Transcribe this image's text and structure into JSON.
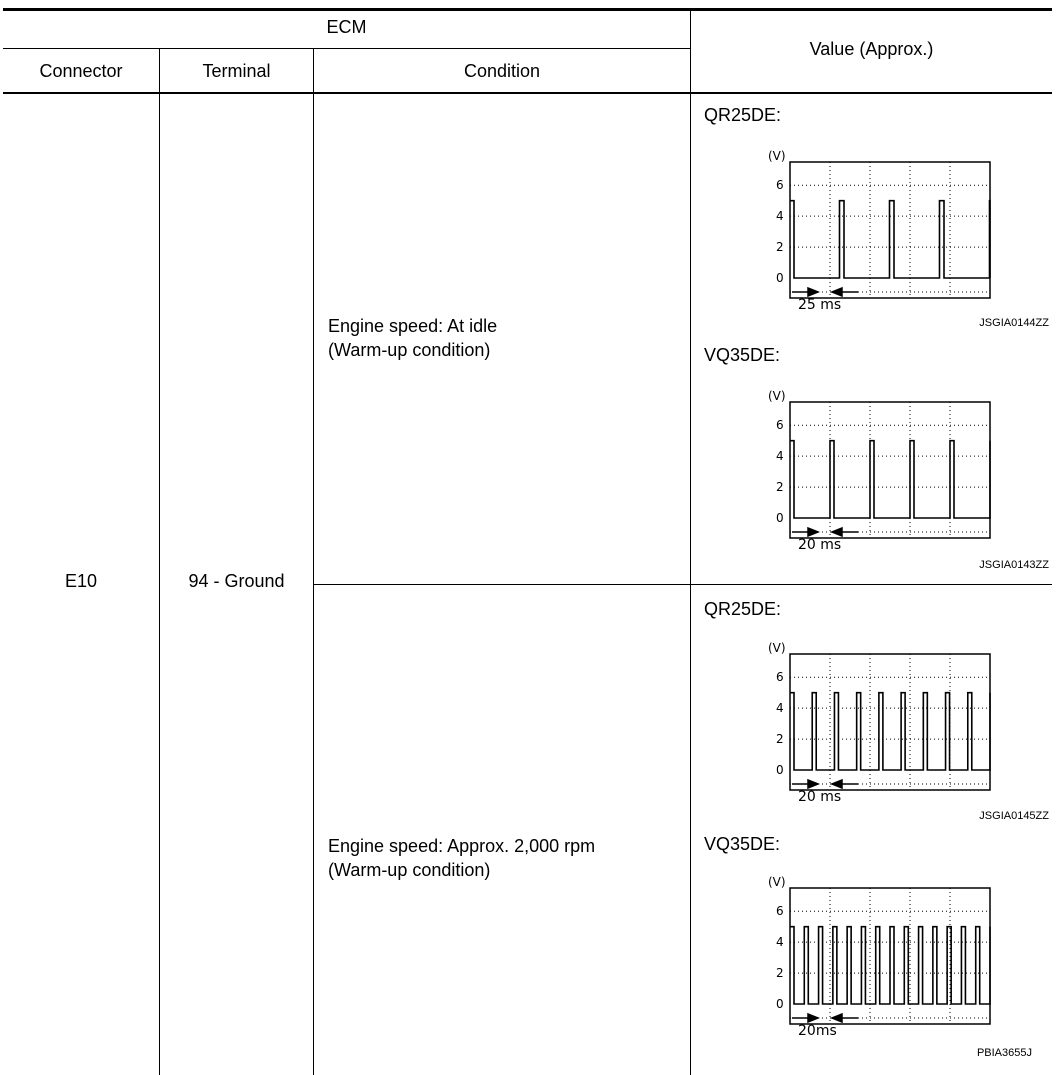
{
  "table": {
    "header": {
      "group": "ECM",
      "connector": "Connector",
      "terminal": "Terminal",
      "condition": "Condition",
      "value": "Value (Approx.)"
    },
    "row": {
      "connector": "E10",
      "terminal": "94 - Ground"
    },
    "conditions": [
      {
        "line1": "Engine speed: At idle",
        "line2": "(Warm-up condition)"
      },
      {
        "line1": "Engine speed: Approx. 2,000 rpm",
        "line2": "(Warm-up condition)"
      }
    ],
    "waveforms": [
      {
        "model": "QR25DE:",
        "unit": "(V)",
        "y_ticks": [
          "6",
          "4",
          "2",
          "0"
        ],
        "period_label": "25 ms",
        "figure_code": "JSGIA0144ZZ",
        "pulses_per_width": 4,
        "duty": 0.09,
        "high_level": 5.0
      },
      {
        "model": "VQ35DE:",
        "unit": "(V)",
        "y_ticks": [
          "6",
          "4",
          "2",
          "0"
        ],
        "period_label": "20 ms",
        "figure_code": "JSGIA0143ZZ",
        "pulses_per_width": 5,
        "duty": 0.09,
        "high_level": 5.0
      },
      {
        "model": "QR25DE:",
        "unit": "(V)",
        "y_ticks": [
          "6",
          "4",
          "2",
          "0"
        ],
        "period_label": "20 ms",
        "figure_code": "JSGIA0145ZZ",
        "pulses_per_width": 9,
        "duty": 0.18,
        "high_level": 5.0
      },
      {
        "model": "VQ35DE:",
        "unit": "(V)",
        "y_ticks": [
          "6",
          "4",
          "2",
          "0"
        ],
        "period_label": "20ms",
        "figure_code": "PBIA3655J",
        "pulses_per_width": 14,
        "duty": 0.2,
        "high_level": 5.0
      }
    ]
  }
}
